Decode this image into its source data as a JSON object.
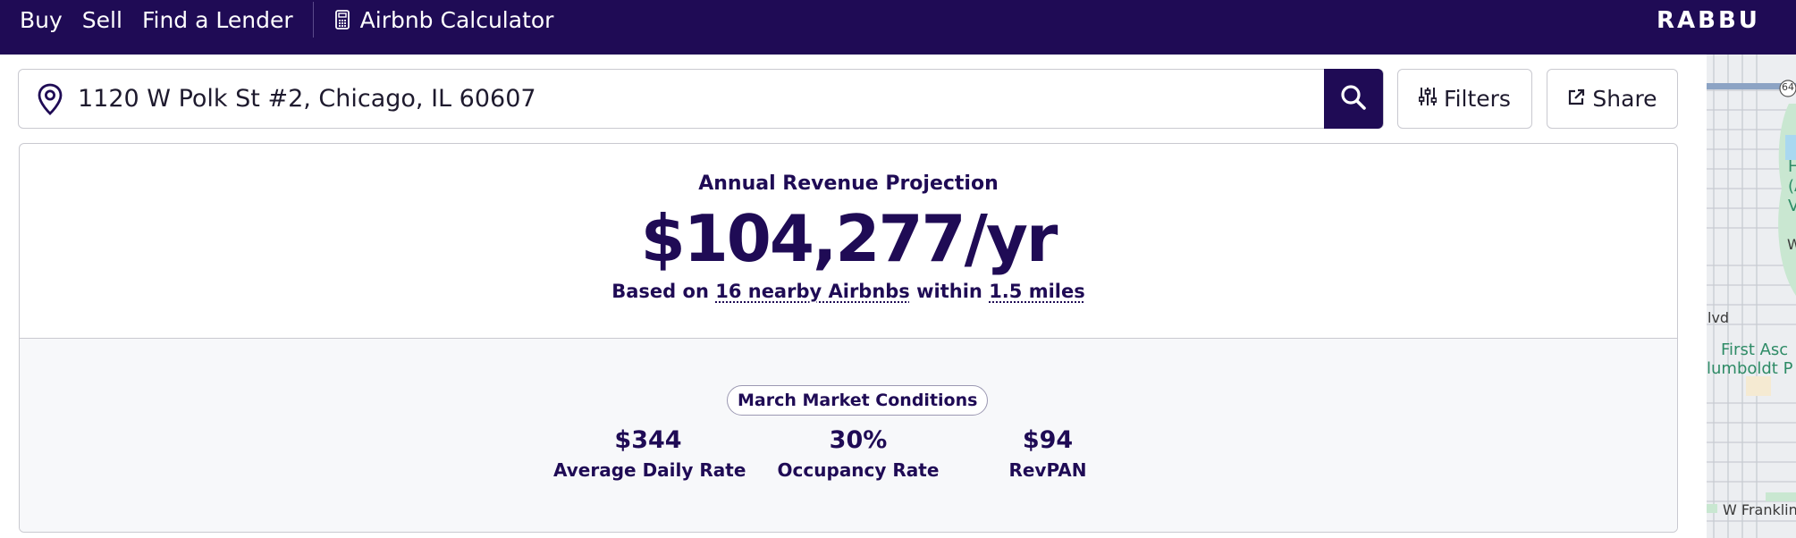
{
  "nav": {
    "links": [
      "Buy",
      "Sell",
      "Find a Lender"
    ],
    "calculator_label": "Airbnb Calculator",
    "brand": "RABBU",
    "bg_color": "#1f0b55"
  },
  "search": {
    "address": "1120 W Polk St #2, Chicago, IL 60607",
    "search_icon": "search-icon",
    "filters_label": "Filters",
    "share_label": "Share"
  },
  "projection": {
    "label": "Annual Revenue Projection",
    "value": "$104,277/yr",
    "basis_prefix": "Based on",
    "nearby_link": "16 nearby Airbnbs",
    "within": "within",
    "radius_link": "1.5 miles"
  },
  "market": {
    "pill": "March Market Conditions",
    "stats": [
      {
        "value": "$344",
        "label": "Average Daily Rate"
      },
      {
        "value": "30%",
        "label": "Occupancy Rate"
      },
      {
        "value": "$94",
        "label": "RevPAN"
      }
    ]
  },
  "map": {
    "labels": [
      "64",
      "H",
      "(A",
      "V",
      "W",
      "lvd",
      "First Asc",
      "lumboldt P",
      "W Franklin"
    ]
  }
}
